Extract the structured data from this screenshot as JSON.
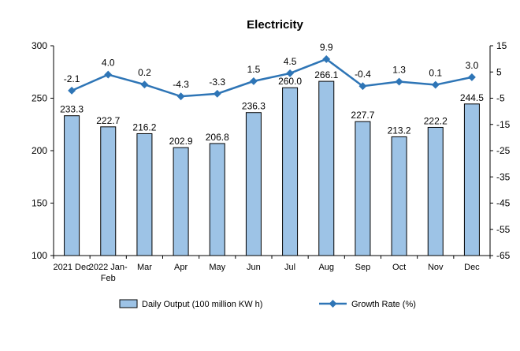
{
  "chart_data": {
    "type": "bar",
    "title": "Electricity",
    "categories": [
      "2021 Dec",
      "2022 Jan-\nFeb",
      "Mar",
      "Apr",
      "May",
      "Jun",
      "Jul",
      "Aug",
      "Sep",
      "Oct",
      "Nov",
      "Dec"
    ],
    "series": [
      {
        "name": "Daily Output (100 million KW h)",
        "type": "bar",
        "axis": "left",
        "values": [
          233.3,
          222.7,
          216.2,
          202.9,
          206.8,
          236.3,
          260.0,
          266.1,
          227.7,
          213.2,
          222.2,
          244.5
        ],
        "labels": [
          "233.3",
          "222.7",
          "216.2",
          "202.9",
          "206.8",
          "236.3",
          "260.0",
          "266.1",
          "227.7",
          "213.2",
          "222.2",
          "244.5"
        ],
        "color": "#9dc3e6",
        "stroke": "#000000"
      },
      {
        "name": "Growth Rate (%)",
        "type": "line",
        "axis": "right",
        "values": [
          -2.1,
          4.0,
          0.2,
          -4.3,
          -3.3,
          1.5,
          4.5,
          9.9,
          -0.4,
          1.3,
          0.1,
          3.0
        ],
        "labels": [
          "-2.1",
          "4.0",
          "0.2",
          "-4.3",
          "-3.3",
          "1.5",
          "4.5",
          "9.9",
          "-0.4",
          "1.3",
          "0.1",
          "3.0"
        ],
        "color": "#2e75b6"
      }
    ],
    "y_left": {
      "ylim": [
        100,
        300
      ],
      "ticks": [
        100,
        150,
        200,
        250,
        300
      ]
    },
    "y_right": {
      "ylim": [
        -65,
        15
      ],
      "ticks": [
        -65,
        -55,
        -45,
        -35,
        -25,
        -15,
        -5,
        5,
        15
      ]
    },
    "grid": false,
    "legend_position": "bottom"
  }
}
